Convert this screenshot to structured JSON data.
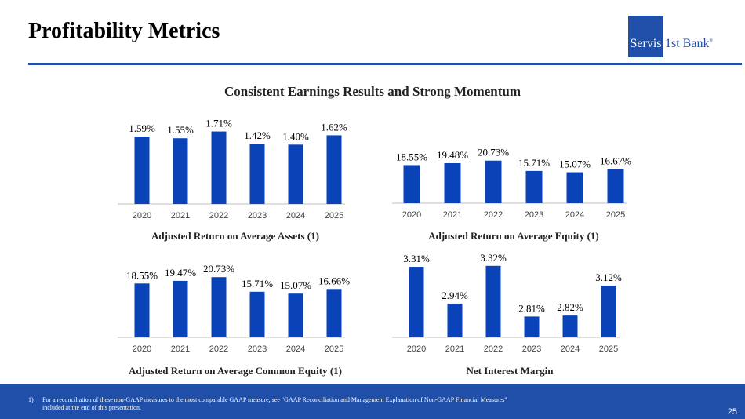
{
  "page": {
    "title": "Profitability Metrics",
    "subtitle": "Consistent Earnings Results and Strong Momentum",
    "logo": {
      "box_text": "Servis",
      "text": "1st Bank",
      "mark": "®"
    },
    "footnote": {
      "number": "1)",
      "text": "For a reconciliation of these non-GAAP measures to the most comparable GAAP measure, see \"GAAP Reconciliation and Management Explanation of Non-GAAP Financial Measures\" included at the end of this presentation."
    },
    "page_number": "25",
    "colors": {
      "bar": "#0a43b8",
      "accent": "#1f4fa8"
    }
  },
  "chart_data": [
    {
      "type": "bar",
      "title": "Adjusted Return on Average Assets (1)",
      "categories": [
        "2020",
        "2021",
        "2022",
        "2023",
        "2024",
        "2025"
      ],
      "values": [
        1.59,
        1.55,
        1.71,
        1.42,
        1.4,
        1.62
      ],
      "labels": [
        "1.59%",
        "1.55%",
        "1.71%",
        "1.42%",
        "1.40%",
        "1.62%"
      ],
      "ylim": [
        0,
        1.85
      ],
      "grid": false
    },
    {
      "type": "bar",
      "title": "Adjusted Return on Average Equity (1)",
      "categories": [
        "2020",
        "2021",
        "2022",
        "2023",
        "2024",
        "2025"
      ],
      "values": [
        18.55,
        19.48,
        20.73,
        15.71,
        15.07,
        16.67
      ],
      "labels": [
        "18.55%",
        "19.48%",
        "20.73%",
        "15.71%",
        "15.07%",
        "16.67%"
      ],
      "ylim": [
        0,
        34
      ],
      "grid": false
    },
    {
      "type": "bar",
      "title": "Adjusted Return on Average Common Equity (1)",
      "categories": [
        "2020",
        "2021",
        "2022",
        "2023",
        "2024",
        "2025"
      ],
      "values": [
        18.55,
        19.47,
        20.73,
        15.71,
        15.07,
        16.66
      ],
      "labels": [
        "18.55%",
        "19.47%",
        "20.73%",
        "15.71%",
        "15.07%",
        "16.66%"
      ],
      "ylim": [
        0,
        27
      ],
      "grid": false
    },
    {
      "type": "bar",
      "title": "Net Interest Margin",
      "categories": [
        "2020",
        "2021",
        "2022",
        "2023",
        "2024",
        "2025"
      ],
      "values": [
        3.31,
        2.94,
        3.32,
        2.81,
        2.82,
        3.12
      ],
      "labels": [
        "3.31%",
        "2.94%",
        "3.32%",
        "2.81%",
        "2.82%",
        "3.12%"
      ],
      "ylim": [
        2.6,
        3.35
      ],
      "grid": false
    }
  ]
}
